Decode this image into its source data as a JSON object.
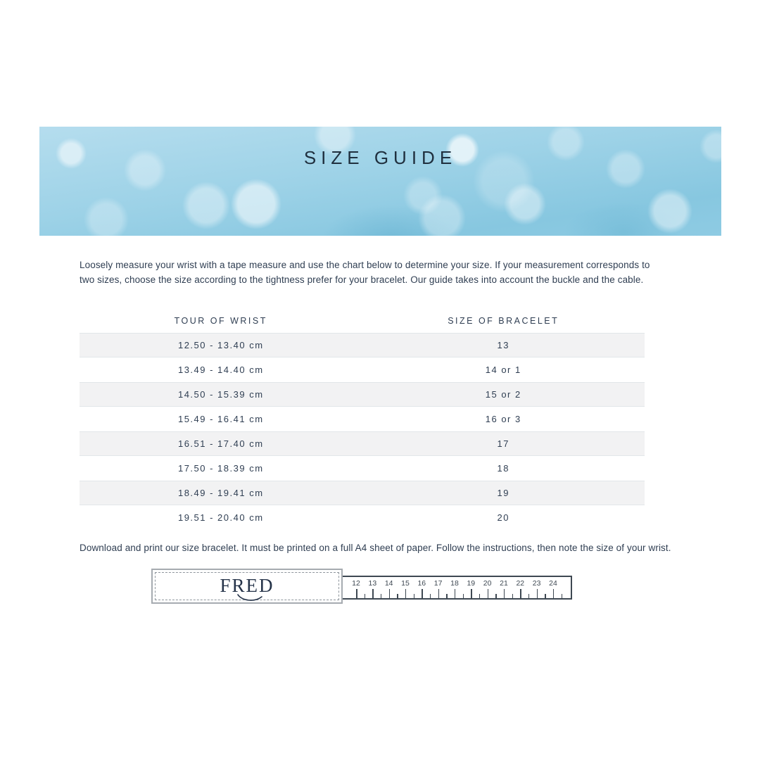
{
  "banner": {
    "title": "SIZE GUIDE"
  },
  "intro_text": "Loosely measure your wrist with a tape measure and use the chart below to determine your size. If your measurement corresponds to two sizes, choose the size according to the tightness prefer for your bracelet. Our guide takes into account the buckle and the cable.",
  "table": {
    "columns": [
      "TOUR OF WRIST",
      "SIZE OF BRACELET"
    ],
    "rows": [
      {
        "wrist": "12.50 - 13.40 cm",
        "size": "13"
      },
      {
        "wrist": "13.49 - 14.40 cm",
        "size": "14 or 1"
      },
      {
        "wrist": "14.50 - 15.39 cm",
        "size": "15 or 2"
      },
      {
        "wrist": "15.49 - 16.41 cm",
        "size": "16 or 3"
      },
      {
        "wrist": "16.51 - 17.40 cm",
        "size": "17"
      },
      {
        "wrist": "17.50 - 18.39 cm",
        "size": "18"
      },
      {
        "wrist": "18.49 - 19.41 cm",
        "size": "19"
      },
      {
        "wrist": "19.51 - 20.40 cm",
        "size": "20"
      }
    ]
  },
  "download_text": "Download and print our size bracelet. It must be printed on a full A4 sheet of paper. Follow the instructions, then note the size of your wrist.",
  "ruler": {
    "brand": "FRED",
    "numbers": [
      "12",
      "13",
      "14",
      "15",
      "16",
      "17",
      "18",
      "19",
      "20",
      "21",
      "22",
      "23",
      "24"
    ]
  },
  "colors": {
    "brand_navy": "#253349",
    "text_navy": "#2f3e52",
    "banner_blue": "#8ecbe3",
    "row_alt_gray": "#f2f2f3"
  }
}
